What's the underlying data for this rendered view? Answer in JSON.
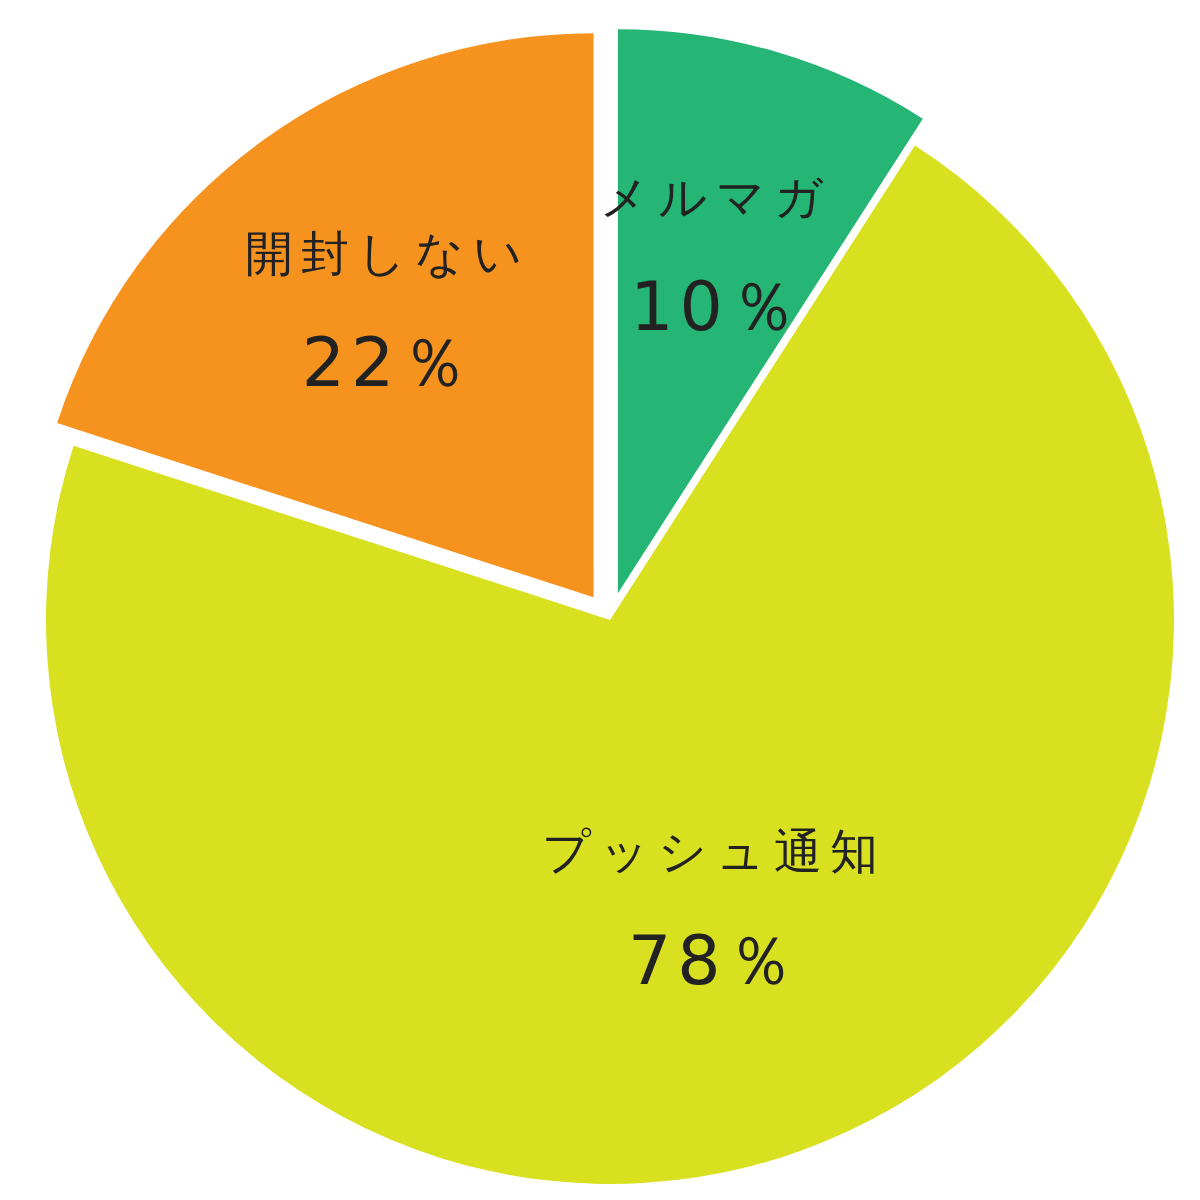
{
  "chart_data": {
    "type": "pie",
    "categories": [
      "メルマガ",
      "プッシュ通知",
      "開封しない"
    ],
    "values": [
      10,
      78,
      22
    ],
    "colors": [
      "#25b574",
      "#d8e020",
      "#f6931e"
    ],
    "value_labels": [
      "10％",
      "78％",
      "22％"
    ]
  }
}
